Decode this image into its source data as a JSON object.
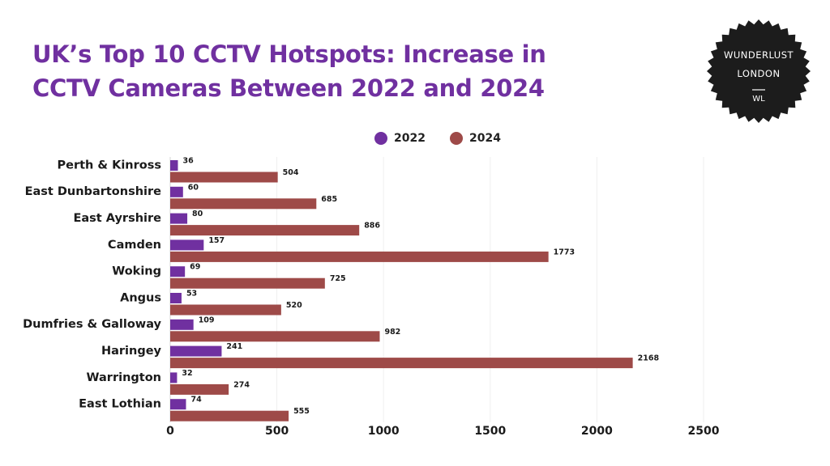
{
  "title_lines": [
    "UK’s Top 10 CCTV Hotspots: Increase in",
    "CCTV Cameras Between 2022 and 2024"
  ],
  "badge": {
    "line1": "WUNDERLUST",
    "line2": "LONDON",
    "mark": "WL"
  },
  "colors": {
    "title": "#7030a0",
    "series_2022": "#7030a0",
    "series_2024": "#9e4a48",
    "badge": "#1c1c1c"
  },
  "chart_data": {
    "type": "bar",
    "orientation": "horizontal",
    "title": "UK’s Top 10 CCTV Hotspots: Increase in CCTV Cameras Between 2022 and 2024",
    "categories": [
      "Perth & Kinross",
      "East Dunbartonshire",
      "East Ayrshire",
      "Camden",
      "Woking",
      "Angus",
      "Dumfries & Galloway",
      "Haringey",
      "Warrington",
      "East Lothian"
    ],
    "series": [
      {
        "name": "2022",
        "values": [
          36,
          60,
          80,
          157,
          69,
          53,
          109,
          241,
          32,
          74
        ]
      },
      {
        "name": "2024",
        "values": [
          504,
          685,
          886,
          1773,
          725,
          520,
          982,
          2168,
          274,
          555
        ]
      }
    ],
    "xlim": [
      0,
      2500
    ],
    "xticks": [
      0,
      500,
      1000,
      1500,
      2000,
      2500
    ],
    "legend_position": "top",
    "grid": true
  }
}
